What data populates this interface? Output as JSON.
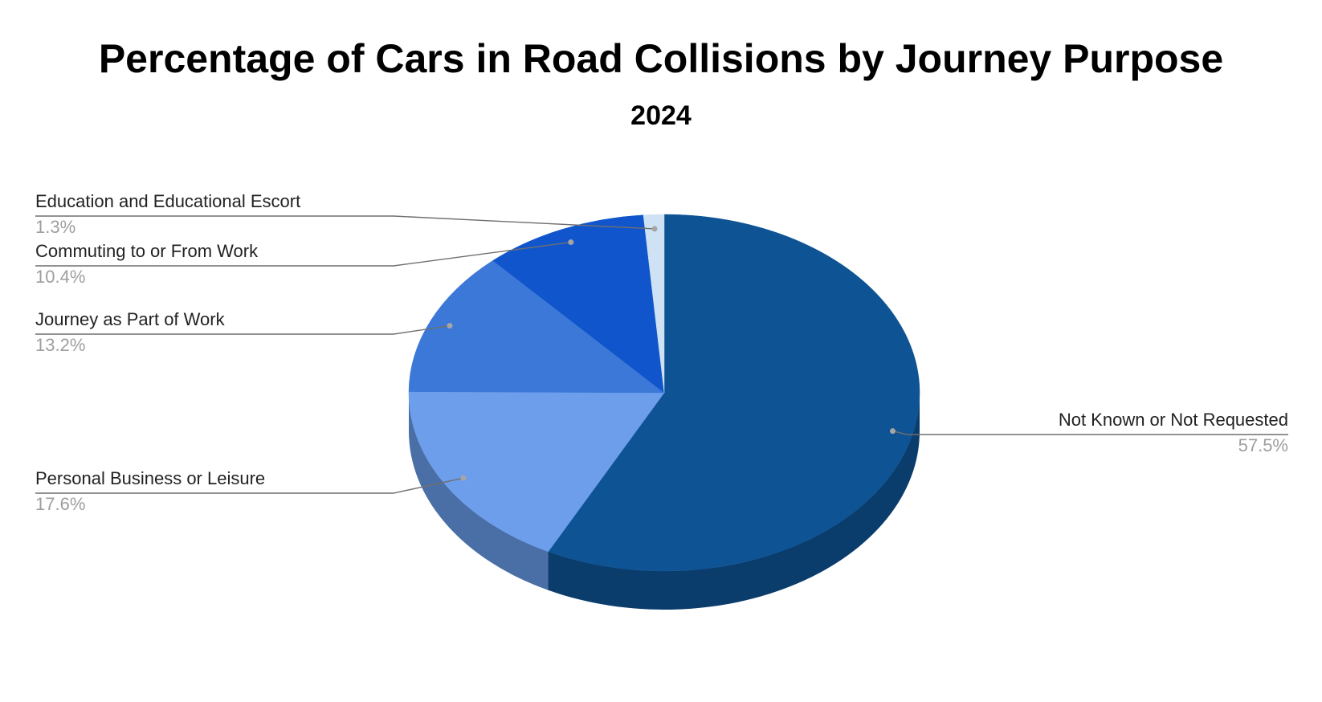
{
  "chart_data": {
    "type": "pie",
    "title": "Percentage of Cars in Road Collisions by Journey Purpose",
    "subtitle": "2024",
    "style": "3d",
    "start_angle_degrees": 0,
    "direction": "clockwise",
    "slices": [
      {
        "label": "Not Known or Not Requested",
        "value": 57.5,
        "value_label": "57.5%",
        "color": "#0e5393",
        "side_color": "#0a3c6c",
        "label_side": "right"
      },
      {
        "label": "Personal Business or Leisure",
        "value": 17.6,
        "value_label": "17.6%",
        "color": "#6d9eeb",
        "side_color": "#4a6fa6",
        "label_side": "left"
      },
      {
        "label": "Journey as Part of Work",
        "value": 13.2,
        "value_label": "13.2%",
        "color": "#3c78d8",
        "side_color": "#2a5497",
        "label_side": "left"
      },
      {
        "label": "Commuting to or From Work",
        "value": 10.4,
        "value_label": "10.4%",
        "color": "#1155cc",
        "side_color": "#0c3b8f",
        "label_side": "left"
      },
      {
        "label": "Education and Educational Escort",
        "value": 1.3,
        "value_label": "1.3%",
        "color": "#cfe2f3",
        "side_color": "#90a0ae",
        "label_side": "left"
      }
    ]
  }
}
